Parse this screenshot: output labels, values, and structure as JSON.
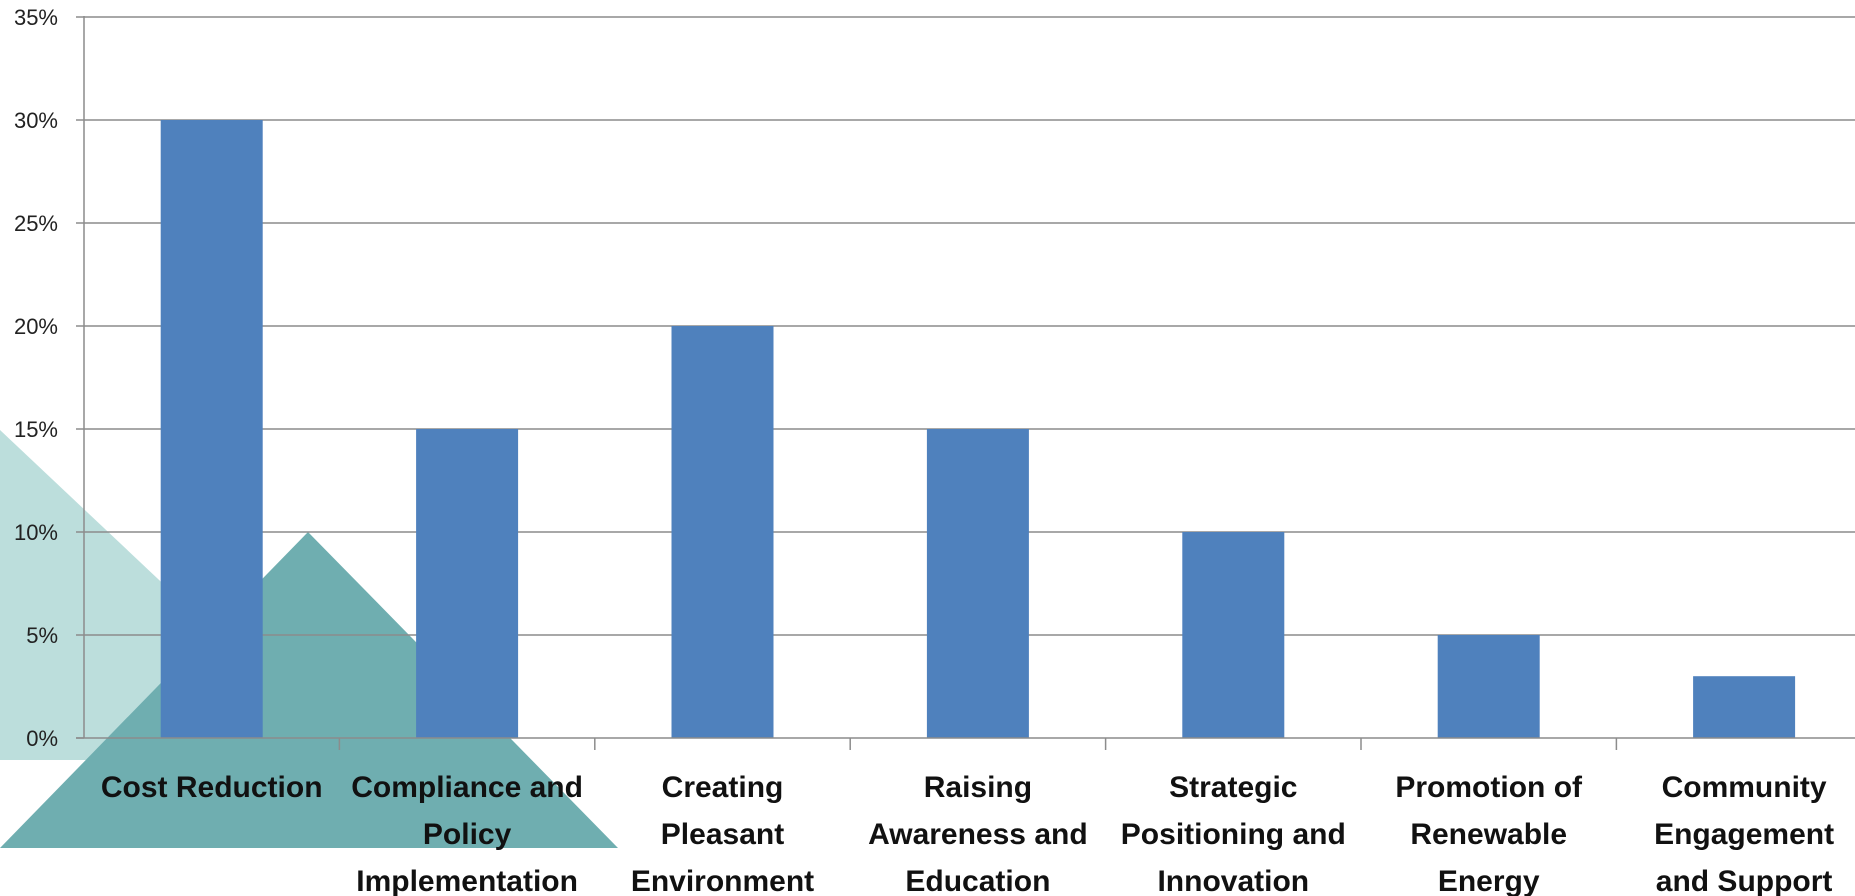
{
  "colors": {
    "bar": "#4f81bd",
    "grid": "#8c8c8c",
    "axis": "#8c8c8c",
    "deco_light": "#bcdedc",
    "deco_dark": "#6faeb0"
  },
  "chart_data": {
    "type": "bar",
    "title": "",
    "xlabel": "",
    "ylabel": "",
    "categories": [
      [
        "Cost Reduction"
      ],
      [
        "Compliance and",
        "Policy",
        "Implementation"
      ],
      [
        "Creating",
        "Pleasant",
        "Environment"
      ],
      [
        "Raising",
        "Awareness and",
        "Education"
      ],
      [
        "Strategic",
        "Positioning and",
        "Innovation"
      ],
      [
        "Promotion of",
        "Renewable",
        "Energy"
      ],
      [
        "Community",
        "Engagement",
        "and Support"
      ]
    ],
    "values": [
      30,
      15,
      20,
      15,
      10,
      5,
      3
    ],
    "ylim": [
      0,
      35
    ],
    "yticks": [
      0,
      5,
      10,
      15,
      20,
      25,
      30,
      35
    ],
    "ytick_labels": [
      "0%",
      "5%",
      "10%",
      "15%",
      "20%",
      "25%",
      "30%",
      "35%"
    ],
    "grid": true,
    "legend": "none"
  }
}
